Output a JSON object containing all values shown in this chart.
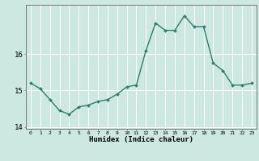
{
  "x": [
    0,
    1,
    2,
    3,
    4,
    5,
    6,
    7,
    8,
    9,
    10,
    11,
    12,
    13,
    14,
    15,
    16,
    17,
    18,
    19,
    20,
    21,
    22,
    23
  ],
  "y": [
    15.2,
    15.05,
    14.75,
    14.45,
    14.35,
    14.55,
    14.6,
    14.7,
    14.75,
    14.9,
    15.1,
    15.15,
    16.1,
    16.85,
    16.65,
    16.65,
    17.05,
    16.75,
    16.75,
    15.75,
    15.55,
    15.15,
    15.15,
    15.2
  ],
  "line_color": "#2e7d6e",
  "marker": "D",
  "marker_size": 2.0,
  "line_width": 1.0,
  "xlabel": "Humidex (Indice chaleur)",
  "xlim": [
    -0.5,
    23.5
  ],
  "ylim": [
    13.95,
    17.35
  ],
  "yticks": [
    14,
    15,
    16
  ],
  "xtick_labels": [
    "0",
    "1",
    "2",
    "3",
    "4",
    "5",
    "6",
    "7",
    "8",
    "9",
    "10",
    "11",
    "12",
    "13",
    "14",
    "15",
    "16",
    "17",
    "18",
    "19",
    "20",
    "21",
    "22",
    "23"
  ],
  "bg_color": "#cce8e0",
  "grid_color": "#ffffff",
  "axis_color": "#666666"
}
